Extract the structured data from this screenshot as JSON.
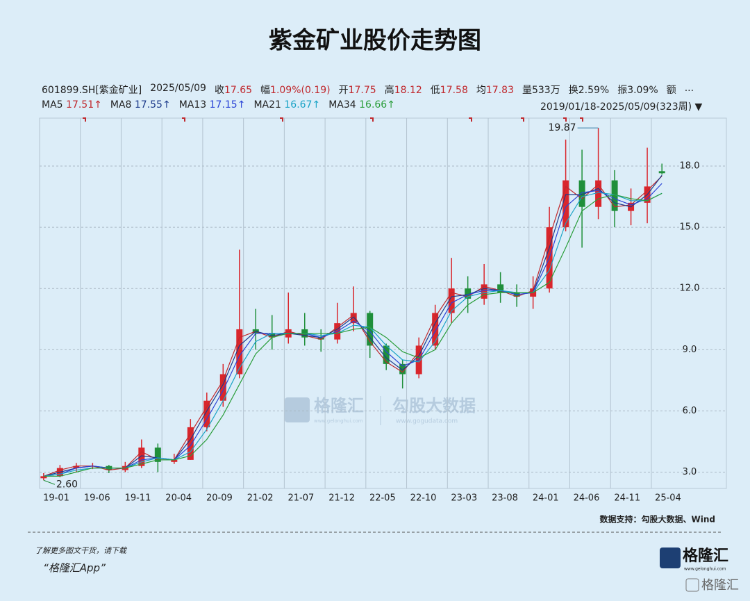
{
  "header": {
    "title": "紫金矿业股价走势图",
    "code": "601899.SH[紫金矿业]",
    "date": "2025/05/09",
    "quote": [
      {
        "label": "收",
        "value": "17.65"
      },
      {
        "label": "幅",
        "value": "1.09%(0.19)"
      },
      {
        "label": "开",
        "value": "17.75"
      },
      {
        "label": "高",
        "value": "18.12"
      },
      {
        "label": "低",
        "value": "17.58"
      },
      {
        "label": "均",
        "value": "17.83"
      },
      {
        "label": "量533万"
      },
      {
        "label": "换2.59%"
      },
      {
        "label": "振3.09%"
      },
      {
        "label": "额"
      },
      {
        "label": "..."
      }
    ],
    "period": "2019/01/18-2025/05/09(323周)"
  },
  "chart_data": {
    "type": "candlestick",
    "x": [
      0.5,
      2.5,
      4.5,
      6.5,
      8.5,
      10.5,
      12.5,
      14.5,
      16.5,
      18.5,
      20.5,
      22.5,
      24.5,
      26.5,
      28.5,
      30.5,
      32.5,
      34.5,
      36.5,
      38.5,
      40.5,
      42.5,
      44.5,
      46.5,
      48.5,
      50.5,
      52.5,
      54.5,
      56.5,
      58.5,
      60.5,
      62.5,
      64.5,
      66.5,
      68.5,
      70.5,
      72.5,
      74.5,
      76.3
    ],
    "open": [
      2.7,
      2.8,
      3.2,
      3.3,
      3.3,
      3.1,
      3.3,
      4.2,
      3.5,
      3.6,
      5.2,
      6.5,
      7.8,
      10.0,
      9.8,
      9.6,
      10.0,
      9.6,
      9.5,
      10.3,
      10.8,
      9.2,
      8.3,
      7.8,
      9.2,
      10.8,
      12.0,
      11.5,
      12.2,
      11.8,
      11.6,
      12.0,
      15.0,
      17.3,
      16.0,
      17.3,
      15.8,
      16.2,
      17.75
    ],
    "high": [
      2.95,
      3.35,
      3.45,
      3.45,
      3.35,
      3.5,
      4.6,
      4.4,
      3.9,
      5.6,
      6.9,
      8.3,
      13.9,
      11.0,
      10.7,
      11.8,
      10.8,
      10.0,
      11.3,
      12.1,
      10.9,
      9.3,
      8.5,
      9.6,
      11.2,
      13.5,
      12.6,
      13.2,
      12.8,
      12.2,
      12.6,
      16.0,
      19.3,
      18.8,
      19.87,
      17.8,
      16.9,
      18.9,
      18.12
    ],
    "low": [
      2.6,
      2.75,
      3.0,
      3.15,
      2.95,
      3.0,
      3.2,
      3.0,
      3.4,
      3.6,
      5.0,
      6.2,
      7.6,
      9.0,
      9.0,
      9.3,
      9.2,
      8.9,
      9.3,
      9.9,
      8.6,
      8.0,
      7.1,
      7.6,
      9.0,
      10.3,
      10.8,
      11.2,
      11.3,
      11.1,
      11.0,
      11.8,
      14.8,
      14.0,
      15.4,
      15.0,
      15.1,
      15.2,
      17.58
    ],
    "close": [
      2.8,
      3.2,
      3.3,
      3.3,
      3.1,
      3.3,
      4.2,
      3.5,
      3.6,
      5.2,
      6.5,
      7.8,
      10.0,
      9.8,
      9.6,
      10.0,
      9.6,
      9.5,
      10.3,
      10.8,
      9.2,
      8.3,
      7.8,
      9.2,
      10.8,
      12.0,
      11.5,
      12.2,
      11.8,
      11.6,
      12.0,
      15.0,
      17.3,
      16.0,
      17.3,
      15.8,
      16.2,
      17.0,
      17.65
    ],
    "up_color": "#d9262c",
    "down_color": "#1f8f3a",
    "series": [
      {
        "name": "MA5",
        "color": "#c0282d",
        "legend_value": "17.51↑",
        "values": [
          2.8,
          3.1,
          3.3,
          3.3,
          3.1,
          3.2,
          4.0,
          3.6,
          3.6,
          4.9,
          6.2,
          7.5,
          9.6,
          9.9,
          9.6,
          9.9,
          9.7,
          9.5,
          10.1,
          10.7,
          9.4,
          8.4,
          7.9,
          8.9,
          10.6,
          11.8,
          11.6,
          12.1,
          11.9,
          11.6,
          11.9,
          14.5,
          17.0,
          16.4,
          17.1,
          16.0,
          16.1,
          16.8,
          17.51
        ]
      },
      {
        "name": "MA8",
        "color": "#1c3a8a",
        "legend_value": "17.55↑",
        "values": [
          2.8,
          3.0,
          3.2,
          3.3,
          3.2,
          3.2,
          3.8,
          3.7,
          3.6,
          4.6,
          6.0,
          7.3,
          9.2,
          9.9,
          9.7,
          9.8,
          9.7,
          9.6,
          10.0,
          10.6,
          9.6,
          8.6,
          8.0,
          8.7,
          10.3,
          11.6,
          11.7,
          12.0,
          11.9,
          11.7,
          11.8,
          14.0,
          16.6,
          16.6,
          16.9,
          16.2,
          16.0,
          16.6,
          17.55
        ]
      },
      {
        "name": "MA13",
        "color": "#2a43d6",
        "legend_value": "17.15↑",
        "values": [
          2.8,
          2.9,
          3.2,
          3.3,
          3.2,
          3.2,
          3.6,
          3.7,
          3.6,
          4.3,
          5.6,
          7.0,
          8.7,
          9.8,
          9.8,
          9.8,
          9.8,
          9.6,
          9.9,
          10.4,
          9.9,
          8.9,
          8.2,
          8.5,
          9.9,
          11.3,
          11.7,
          11.9,
          11.9,
          11.7,
          11.8,
          13.5,
          16.0,
          16.7,
          16.8,
          16.4,
          16.1,
          16.4,
          17.15
        ]
      },
      {
        "name": "MA21",
        "color": "#1aa3c6",
        "legend_value": "16.67↑",
        "values": [
          2.8,
          2.9,
          3.1,
          3.2,
          3.2,
          3.2,
          3.5,
          3.7,
          3.6,
          4.0,
          5.1,
          6.5,
          8.1,
          9.4,
          9.8,
          9.8,
          9.8,
          9.7,
          9.8,
          10.2,
          10.1,
          9.2,
          8.5,
          8.4,
          9.4,
          10.9,
          11.6,
          11.8,
          11.9,
          11.8,
          11.8,
          12.9,
          15.2,
          16.5,
          16.7,
          16.6,
          16.3,
          16.3,
          16.67
        ]
      },
      {
        "name": "MA34",
        "color": "#2a9d3a",
        "legend_value": "16.66↑",
        "values": [
          2.8,
          2.8,
          3.0,
          3.2,
          3.2,
          3.2,
          3.4,
          3.6,
          3.6,
          3.8,
          4.6,
          5.8,
          7.3,
          8.8,
          9.6,
          9.8,
          9.8,
          9.8,
          9.8,
          10.0,
          10.1,
          9.6,
          8.9,
          8.6,
          9.0,
          10.3,
          11.2,
          11.7,
          11.8,
          11.8,
          11.8,
          12.3,
          14.0,
          15.8,
          16.4,
          16.6,
          16.4,
          16.3,
          16.66
        ]
      }
    ],
    "annotations": [
      {
        "text": "19.87",
        "value": 19.87,
        "x": 68.5
      },
      {
        "text": "2.60",
        "value": 2.6,
        "x": 0.5
      }
    ],
    "xlim": [
      0,
      84.2
    ],
    "ylim": [
      2.2,
      20.35
    ],
    "xticks": [
      {
        "value": 0,
        "label": "19-01"
      },
      {
        "value": 5,
        "label": "19-06"
      },
      {
        "value": 10,
        "label": "19-11"
      },
      {
        "value": 15,
        "label": "20-04"
      },
      {
        "value": 20,
        "label": "20-09"
      },
      {
        "value": 25,
        "label": "21-02"
      },
      {
        "value": 30,
        "label": "21-07"
      },
      {
        "value": 35,
        "label": "21-12"
      },
      {
        "value": 40,
        "label": "22-05"
      },
      {
        "value": 45,
        "label": "22-10"
      },
      {
        "value": 50,
        "label": "23-03"
      },
      {
        "value": 55,
        "label": "23-08"
      },
      {
        "value": 60,
        "label": "24-01"
      },
      {
        "value": 65,
        "label": "24-06"
      },
      {
        "value": 70,
        "label": "24-11"
      },
      {
        "value": 75,
        "label": "25-04"
      }
    ],
    "yticks": [
      {
        "value": 3,
        "label": "3.0"
      },
      {
        "value": 6,
        "label": "6.0"
      },
      {
        "value": 9,
        "label": "9.0"
      },
      {
        "value": 12,
        "label": "12.0"
      },
      {
        "value": 15,
        "label": "15.0"
      },
      {
        "value": 18,
        "label": "18.0"
      }
    ],
    "grid": true
  },
  "footer": {
    "source": "数据支持：勾股大数据、Wind",
    "promo": "了解更多图文干货，请下载",
    "app": "“格隆汇App”",
    "logo": "格隆汇",
    "logo_url": "www.gelonghui.com",
    "corner": "格隆汇",
    "watermark": {
      "brand": "格隆汇",
      "brand_url": "www.gelonghui.com",
      "partner": "勾股大数据",
      "partner_url": "www.gogudata.com"
    }
  }
}
